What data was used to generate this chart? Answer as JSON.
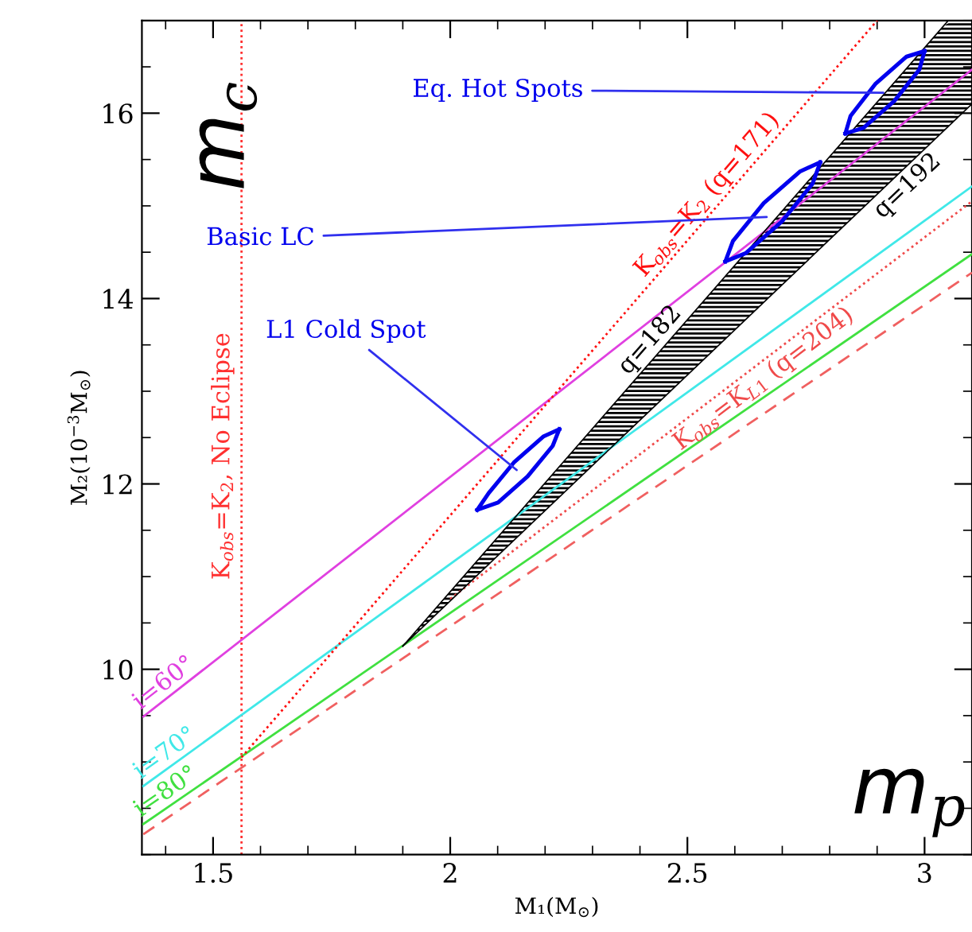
{
  "chart_data": {
    "type": "line",
    "xlabel": "M₁(M$_{⊙}$)",
    "ylabel": "M₂(10$^{−3}$M$_{⊙}$)",
    "xlim": [
      1.35,
      3.1
    ],
    "ylim": [
      8,
      17
    ],
    "xticks": [
      1.5,
      2,
      2.5,
      3
    ],
    "yticks": [
      10,
      12,
      14,
      16
    ],
    "grid": false,
    "legend": false,
    "series": [
      {
        "name": "i=60°",
        "color": "#e040e0",
        "x": [
          1.353,
          3.1
        ],
        "values": [
          9.49,
          16.47
        ],
        "line_style": "solid"
      },
      {
        "name": "i=70°",
        "color": "#40e8e8",
        "x": [
          1.353,
          3.1
        ],
        "values": [
          8.74,
          15.21
        ],
        "line_style": "solid"
      },
      {
        "name": "i=80°",
        "color": "#40e040",
        "x": [
          1.353,
          3.1
        ],
        "values": [
          8.33,
          14.48
        ],
        "line_style": "solid"
      },
      {
        "color": "#f06060",
        "x": [
          1.353,
          3.1
        ],
        "values": [
          8.22,
          14.28
        ],
        "line_style": "dashed"
      },
      {
        "name": "K$_{obs}$=K$_{L1}$ (q=204)",
        "color": "#f04a4a",
        "x": [
          2.0,
          3.1
        ],
        "values": [
          10.76,
          15.05
        ],
        "line_style": "dotted"
      },
      {
        "name": "K$_{obs}$=K$_{2}$ (q=171)",
        "color": "#ff1010",
        "x": [
          1.56,
          2.9
        ],
        "values": [
          9.05,
          17.0
        ],
        "line_style": "dotted"
      },
      {
        "name": "q=182",
        "color": "#000000",
        "x": [
          1.9,
          3.05
        ],
        "values": [
          10.25,
          17.0
        ],
        "line_style": "solid"
      },
      {
        "name": "q=192",
        "color": "#000000",
        "x": [
          1.9,
          3.1
        ],
        "values": [
          10.25,
          16.1
        ],
        "line_style": "solid"
      },
      {
        "color": "#0000ee",
        "x": [
          2.057,
          2.101,
          2.163,
          2.216,
          2.23
        ],
        "values": [
          11.72,
          11.8,
          12.08,
          12.41,
          12.59
        ],
        "line_style": "solid"
      },
      {
        "color": "#0000ee",
        "x": [
          2.057,
          2.081,
          2.134,
          2.196,
          2.23
        ],
        "values": [
          11.72,
          11.9,
          12.23,
          12.51,
          12.59
        ],
        "line_style": "solid"
      },
      {
        "color": "#0000ee",
        "x": [
          2.58,
          2.623,
          2.699,
          2.764,
          2.78
        ],
        "values": [
          14.4,
          14.49,
          14.83,
          15.24,
          15.47
        ],
        "line_style": "solid"
      },
      {
        "color": "#0000ee",
        "x": [
          2.58,
          2.596,
          2.661,
          2.737,
          2.78
        ],
        "values": [
          14.4,
          14.62,
          15.03,
          15.37,
          15.47
        ],
        "line_style": "solid"
      },
      {
        "color": "#0000ee",
        "x": [
          2.833,
          2.871,
          2.936,
          2.989,
          3.0
        ],
        "values": [
          15.78,
          15.84,
          16.13,
          16.47,
          16.67
        ],
        "line_style": "solid"
      },
      {
        "color": "#0000ee",
        "x": [
          2.833,
          2.844,
          2.897,
          2.962,
          3.0
        ],
        "values": [
          15.78,
          15.97,
          16.32,
          16.61,
          16.67
        ],
        "line_style": "solid"
      }
    ],
    "ref_lines": [
      {
        "axis": "x",
        "value": 1.56,
        "label": "K$_{obs}$=K$_{2}$, No Eclipse",
        "color": "#ff3030",
        "line_style": "dotted"
      }
    ],
    "annotations": [
      {
        "text": "L1 Cold Spot",
        "x": 2.14,
        "y": 12.15
      },
      {
        "text": "Basic LC",
        "x": 2.667,
        "y": 14.88
      },
      {
        "text": "Eq. Hot Spots",
        "x": 2.913,
        "y": 16.22
      },
      "m$_{c}$",
      "m$_{p}$"
    ]
  }
}
